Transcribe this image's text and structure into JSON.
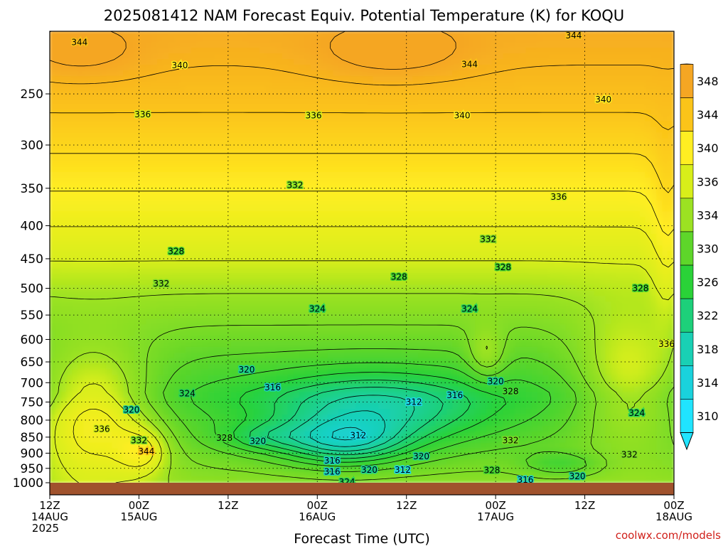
{
  "chart_data": {
    "type": "heatmap",
    "title": "2025081412 NAM Forecast Equiv. Potential Temperature (K) for KOQU",
    "xlabel": "Forecast Time (UTC)",
    "credit": "coolwx.com/models",
    "y_axis": {
      "label": "",
      "scale": "log-pressure",
      "reversed": true,
      "range_hpa": [
        1000,
        200
      ],
      "ticks": [
        "250",
        "300",
        "350",
        "400",
        "450",
        "500",
        "550",
        "600",
        "650",
        "700",
        "750",
        "800",
        "850",
        "900",
        "950",
        "1000"
      ]
    },
    "x_axis": {
      "range_hours": [
        0,
        84
      ],
      "ticks": [
        {
          "hour": 0,
          "label": [
            "12Z",
            "14AUG",
            "2025"
          ]
        },
        {
          "hour": 12,
          "label": [
            "00Z",
            "15AUG"
          ]
        },
        {
          "hour": 24,
          "label": [
            "12Z"
          ]
        },
        {
          "hour": 36,
          "label": [
            "00Z",
            "16AUG"
          ]
        },
        {
          "hour": 48,
          "label": [
            "12Z"
          ]
        },
        {
          "hour": 60,
          "label": [
            "00Z",
            "17AUG"
          ]
        },
        {
          "hour": 72,
          "label": [
            "12Z"
          ]
        },
        {
          "hour": 84,
          "label": [
            "00Z",
            "18AUG"
          ]
        }
      ]
    },
    "colorbar": {
      "levels": [
        "348",
        "344",
        "340",
        "336",
        "334",
        "330",
        "326",
        "322",
        "318",
        "314",
        "310"
      ],
      "colors": [
        "#f5a623",
        "#fbc419",
        "#ffee22",
        "#d8ee1a",
        "#9ce222",
        "#5ed62a",
        "#2ad238",
        "#1dd07a",
        "#19d0b4",
        "#1ad2dc",
        "#20e4ff"
      ],
      "extend": "both"
    },
    "contour_labels": [
      {
        "value": "344",
        "hour": 4.0,
        "p": 208
      },
      {
        "value": "344",
        "hour": 70.5,
        "p": 203
      },
      {
        "value": "344",
        "hour": 56.5,
        "p": 225
      },
      {
        "value": "340",
        "hour": 17.5,
        "p": 226
      },
      {
        "value": "340",
        "hour": 55.5,
        "p": 270
      },
      {
        "value": "340",
        "hour": 74.5,
        "p": 255
      },
      {
        "value": "336",
        "hour": 12.5,
        "p": 269
      },
      {
        "value": "336",
        "hour": 35.5,
        "p": 270
      },
      {
        "value": "336",
        "hour": 68.5,
        "p": 361
      },
      {
        "value": "332",
        "hour": 33.0,
        "p": 346
      },
      {
        "value": "332",
        "hour": 59.0,
        "p": 420
      },
      {
        "value": "328",
        "hour": 17.0,
        "p": 438
      },
      {
        "value": "328",
        "hour": 47.0,
        "p": 480
      },
      {
        "value": "328",
        "hour": 61.0,
        "p": 464
      },
      {
        "value": "328",
        "hour": 79.5,
        "p": 500
      },
      {
        "value": "332",
        "hour": 15.0,
        "p": 492
      },
      {
        "value": "324",
        "hour": 36.0,
        "p": 538
      },
      {
        "value": "324",
        "hour": 56.5,
        "p": 538
      },
      {
        "value": "320",
        "hour": 26.5,
        "p": 668
      },
      {
        "value": "316",
        "hour": 30.0,
        "p": 712
      },
      {
        "value": "312",
        "hour": 49.0,
        "p": 750
      },
      {
        "value": "316",
        "hour": 54.5,
        "p": 732
      },
      {
        "value": "320",
        "hour": 60.0,
        "p": 697
      },
      {
        "value": "328",
        "hour": 62.0,
        "p": 722
      },
      {
        "value": "324",
        "hour": 18.5,
        "p": 728
      },
      {
        "value": "320",
        "hour": 11.0,
        "p": 771
      },
      {
        "value": "336",
        "hour": 7.0,
        "p": 826
      },
      {
        "value": "328",
        "hour": 23.5,
        "p": 852
      },
      {
        "value": "332",
        "hour": 12.0,
        "p": 860
      },
      {
        "value": "320",
        "hour": 28.0,
        "p": 862
      },
      {
        "value": "312",
        "hour": 41.5,
        "p": 845
      },
      {
        "value": "344",
        "hour": 13.0,
        "p": 895
      },
      {
        "value": "316",
        "hour": 38.0,
        "p": 925
      },
      {
        "value": "320",
        "hour": 50.0,
        "p": 910
      },
      {
        "value": "316",
        "hour": 38.0,
        "p": 962
      },
      {
        "value": "320",
        "hour": 43.0,
        "p": 955
      },
      {
        "value": "312",
        "hour": 47.5,
        "p": 955
      },
      {
        "value": "332",
        "hour": 78.0,
        "p": 905
      },
      {
        "value": "332",
        "hour": 62.0,
        "p": 860
      },
      {
        "value": "324",
        "hour": 79.0,
        "p": 780
      },
      {
        "value": "336",
        "hour": 83.0,
        "p": 610
      },
      {
        "value": "328",
        "hour": 59.5,
        "p": 957
      },
      {
        "value": "316",
        "hour": 64.0,
        "p": 990
      },
      {
        "value": "320",
        "hour": 71.0,
        "p": 977
      },
      {
        "value": "324",
        "hour": 40.0,
        "p": 998
      }
    ]
  }
}
